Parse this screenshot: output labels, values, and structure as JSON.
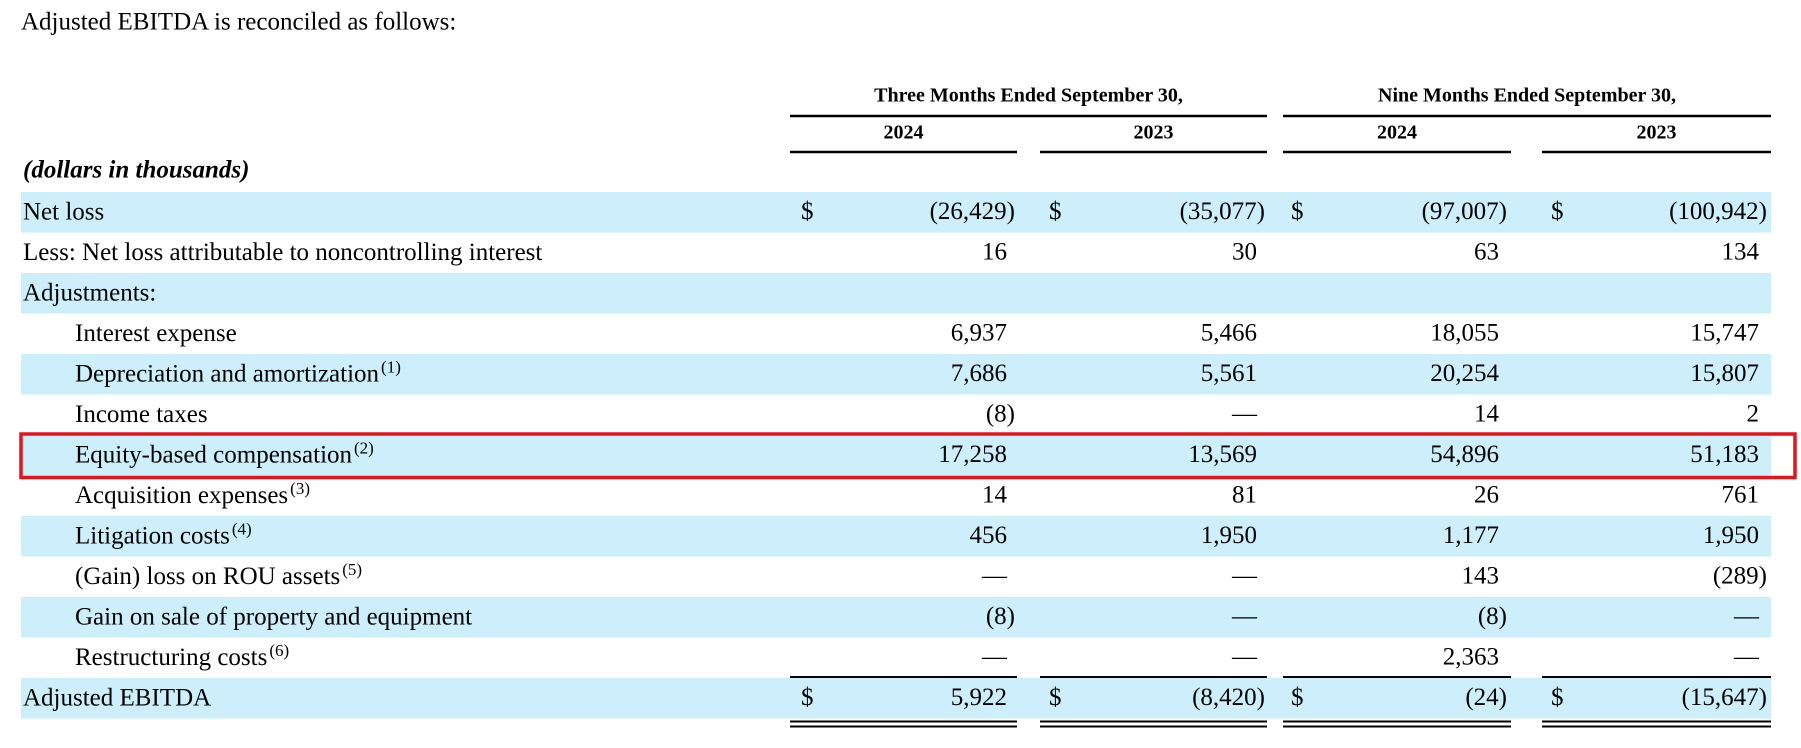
{
  "intro": "Adjusted EBITDA is reconciled as follows:",
  "column_groups": [
    {
      "title": "Three Months Ended September 30,",
      "years": [
        "2024",
        "2023"
      ]
    },
    {
      "title": "Nine Months Ended September 30,",
      "years": [
        "2024",
        "2023"
      ]
    }
  ],
  "units": "(dollars in thousands)",
  "rows": [
    {
      "label": "Net loss",
      "currency": "$",
      "values": [
        "(26,429)",
        "(35,077)",
        "(97,007)",
        "(100,942)"
      ]
    },
    {
      "label": "Less: Net loss attributable to noncontrolling interest",
      "values": [
        "16",
        "30",
        "63",
        "134"
      ]
    },
    {
      "label": "Adjustments:",
      "items": [
        {
          "label": "Interest expense",
          "values": [
            "6,937",
            "5,466",
            "18,055",
            "15,747"
          ]
        },
        {
          "label": "Depreciation and amortization",
          "note": "(1)",
          "values": [
            "7,686",
            "5,561",
            "20,254",
            "15,807"
          ]
        },
        {
          "label": "Income taxes",
          "values": [
            "(8)",
            "—",
            "14",
            "2"
          ]
        },
        {
          "label": "Equity-based compensation",
          "note": "(2)",
          "highlighted": true,
          "values": [
            "17,258",
            "13,569",
            "54,896",
            "51,183"
          ]
        },
        {
          "label": "Acquisition expenses",
          "note": "(3)",
          "values": [
            "14",
            "81",
            "26",
            "761"
          ]
        },
        {
          "label": "Litigation costs",
          "note": "(4)",
          "values": [
            "456",
            "1,950",
            "1,177",
            "1,950"
          ]
        },
        {
          "label": "(Gain) loss on ROU assets",
          "note": "(5)",
          "values": [
            "—",
            "—",
            "143",
            "(289)"
          ]
        },
        {
          "label": "Gain on sale of property and equipment",
          "values": [
            "(8)",
            "—",
            "(8)",
            "—"
          ]
        },
        {
          "label": "Restructuring costs",
          "note": "(6)",
          "values": [
            "—",
            "—",
            "2,363",
            "—"
          ]
        }
      ]
    },
    {
      "label": "Adjusted EBITDA",
      "currency": "$",
      "values": [
        "5,922",
        "(8,420)",
        "(24)",
        "(15,647)"
      ]
    }
  ]
}
